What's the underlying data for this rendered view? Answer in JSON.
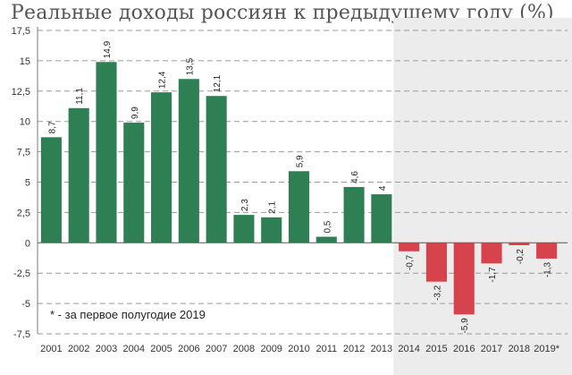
{
  "title": "Реальные доходы россиян к предыдущему году (%)",
  "footnote": "* - за первое полугодие 2019",
  "colors": {
    "positive": "#2f7f54",
    "negative": "#d7434d",
    "shade": "#ececec",
    "grid": "#9a9a9a"
  },
  "chart_data": {
    "type": "bar",
    "title": "Реальные доходы россиян к предыдущему году (%)",
    "categories": [
      "2001",
      "2002",
      "2003",
      "2004",
      "2005",
      "2006",
      "2007",
      "2008",
      "2009",
      "2010",
      "2011",
      "2012",
      "2013",
      "2014",
      "2015",
      "2016",
      "2017",
      "2018",
      "2019*"
    ],
    "values": [
      8.7,
      11.1,
      14.9,
      9.9,
      12.4,
      13.5,
      12.1,
      2.3,
      2.1,
      5.9,
      0.5,
      4.6,
      4,
      -0.7,
      -3.2,
      -5.9,
      -1.7,
      -0.2,
      -1.3
    ],
    "labels": [
      "8,7",
      "11,1",
      "14,9",
      "9,9",
      "12,4",
      "13,5",
      "12,1",
      "2,3",
      "2,1",
      "5,9",
      "0,5",
      "4,6",
      "4",
      "-0,7",
      "-3,2",
      "-5,9",
      "-1,7",
      "-0,2",
      "-1,3"
    ],
    "ylim": [
      -7.5,
      17.5
    ],
    "yticks": [
      17.5,
      15,
      12.5,
      10,
      7.5,
      5,
      2.5,
      0,
      -2.5,
      -5,
      -7.5
    ],
    "ytick_labels": [
      "17,5",
      "15",
      "12,5",
      "10",
      "7,5",
      "5",
      "2,5",
      "0",
      "-2,5",
      "-5",
      "-7,5"
    ],
    "shaded_from_category": "2014",
    "grid": true
  }
}
